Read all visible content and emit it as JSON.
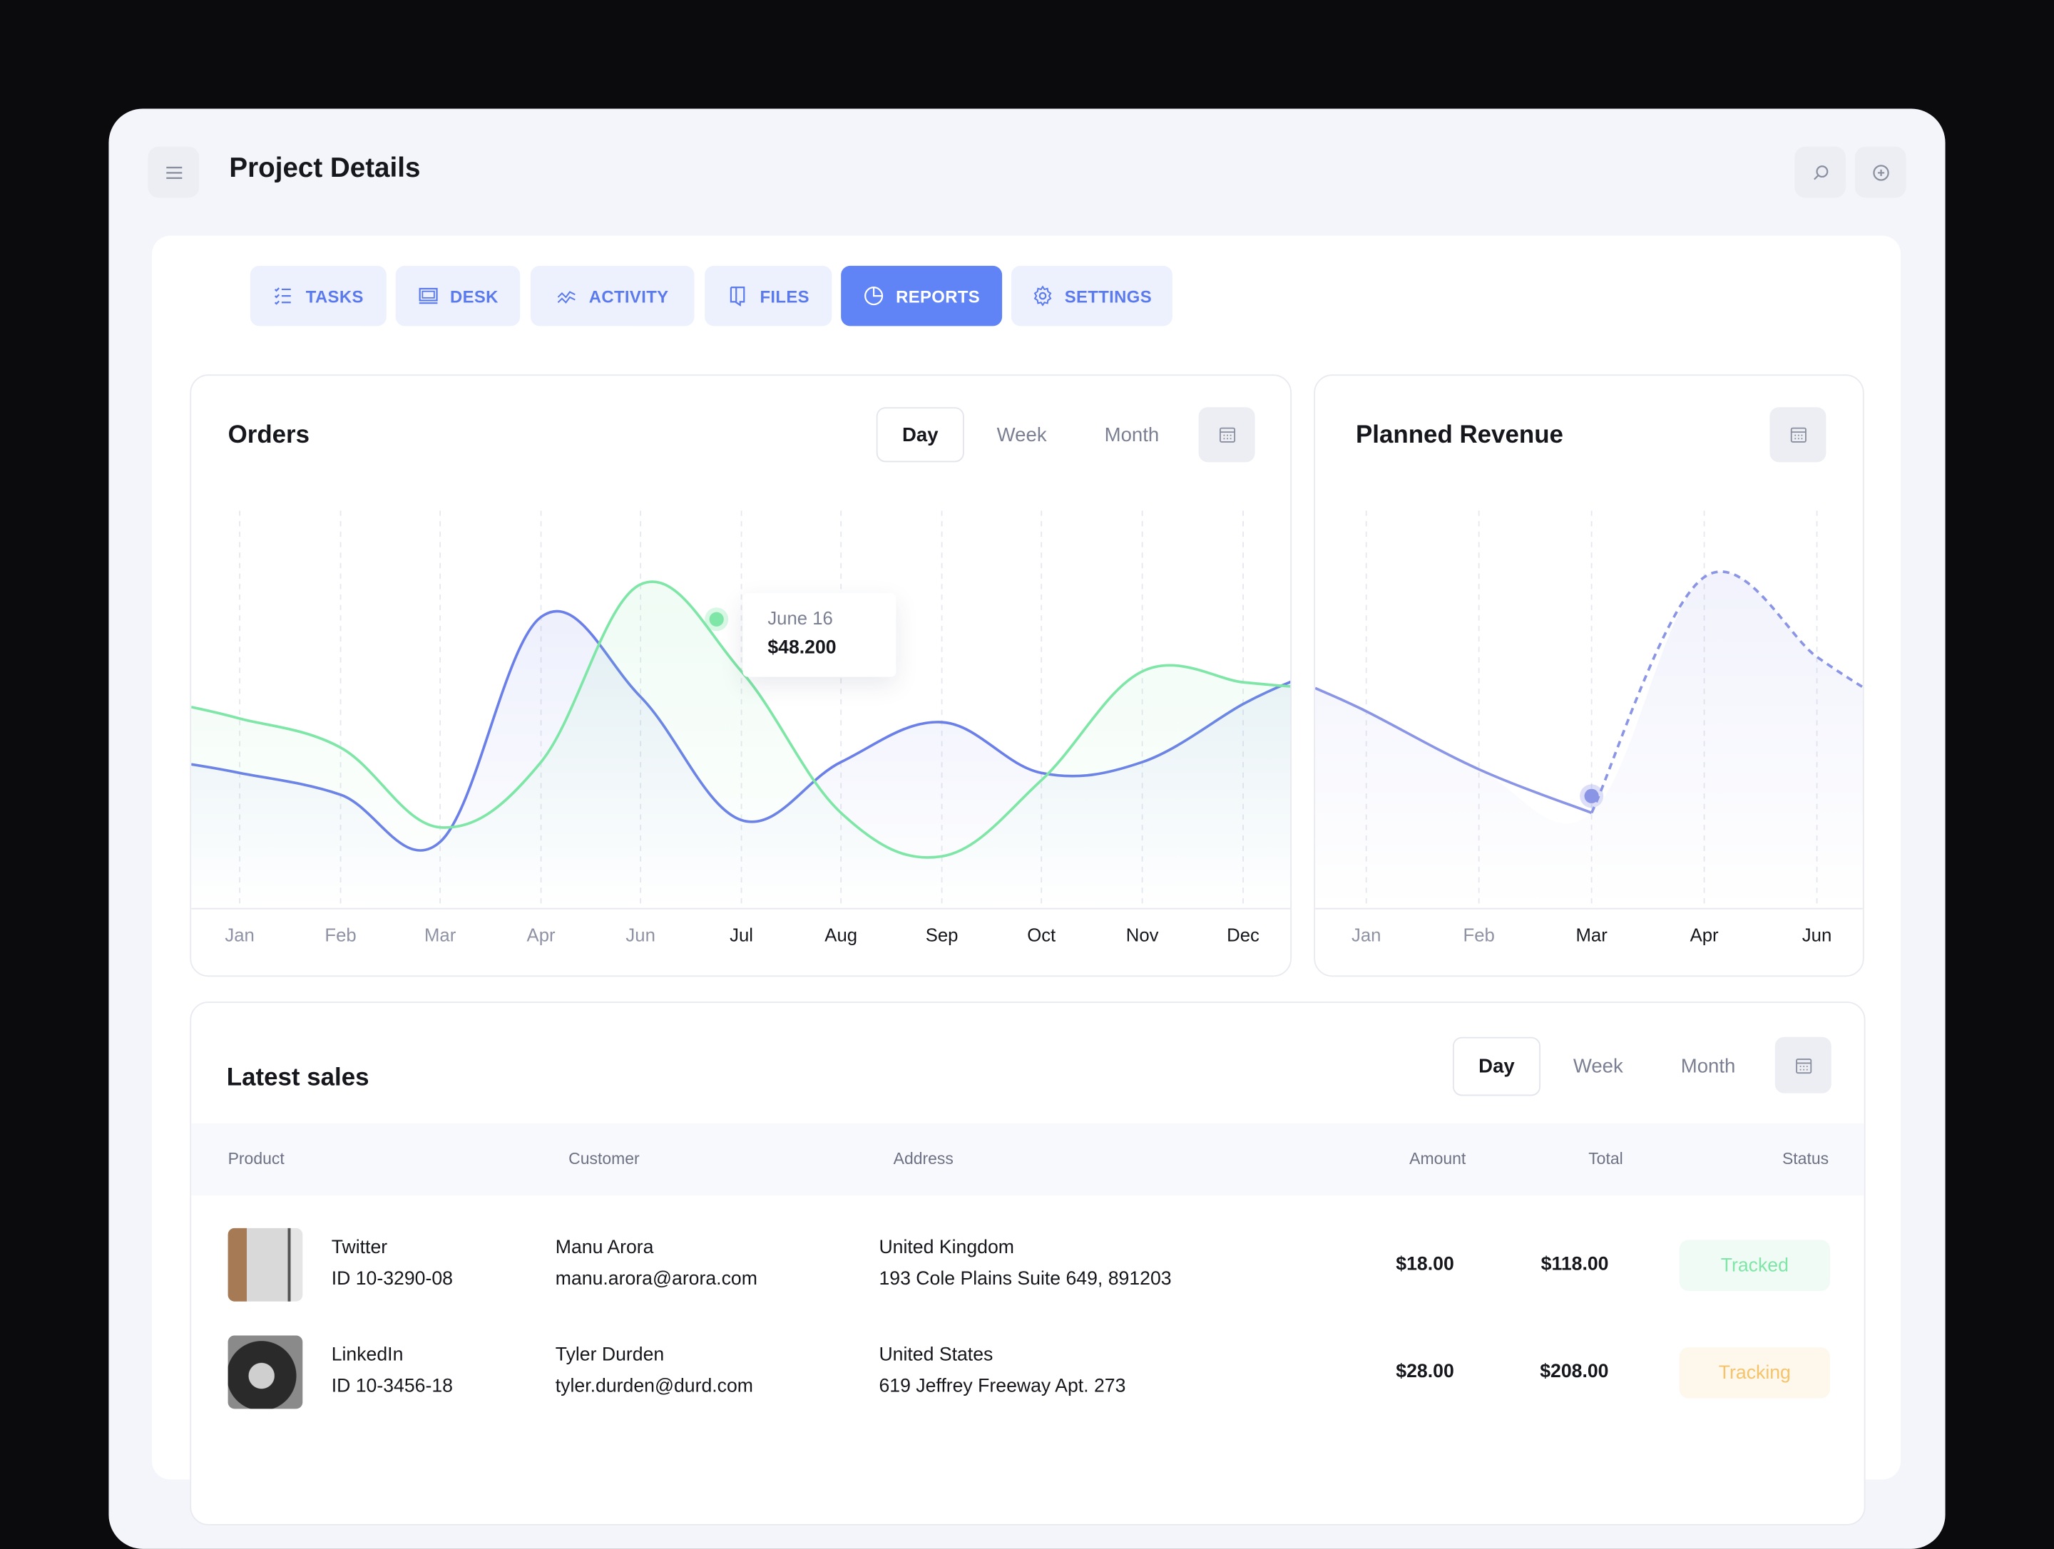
{
  "header": {
    "title": "Project Details",
    "menu_icon": "menu-icon",
    "search_icon": "search-icon",
    "add_icon": "plus-circle-icon"
  },
  "tabs": [
    {
      "label": "TASKS",
      "icon": "checklist-icon",
      "active": false
    },
    {
      "label": "DESK",
      "icon": "desk-icon",
      "active": false
    },
    {
      "label": "ACTIVITY",
      "icon": "activity-icon",
      "active": false
    },
    {
      "label": "FILES",
      "icon": "files-icon",
      "active": false
    },
    {
      "label": "REPORTS",
      "icon": "pie-chart-icon",
      "active": true
    },
    {
      "label": "SETTINGS",
      "icon": "gear-icon",
      "active": false
    }
  ],
  "orders": {
    "title": "Orders",
    "periods": [
      "Day",
      "Week",
      "Month"
    ],
    "selected_period": "Day",
    "tooltip": {
      "date": "June 16",
      "value": "$48.200"
    }
  },
  "revenue": {
    "title": "Planned Revenue"
  },
  "sales": {
    "title": "Latest sales",
    "periods": [
      "Day",
      "Week",
      "Month"
    ],
    "selected_period": "Day",
    "columns": [
      "Product",
      "Customer",
      "Address",
      "Amount",
      "Total",
      "Status"
    ],
    "rows": [
      {
        "product": "Twitter",
        "id": "ID 10-3290-08",
        "customer": "Manu Arora",
        "email": "manu.arora@arora.com",
        "country": "United Kingdom",
        "address": "193 Cole Plains Suite 649, 891203",
        "amount": "$18.00",
        "total": "$118.00",
        "status": "Tracked",
        "status_color": "#7ee6a6"
      },
      {
        "product": "LinkedIn",
        "id": "ID 10-3456-18",
        "customer": "Tyler Durden",
        "email": "tyler.durden@durd.com",
        "country": "United States",
        "address": "619 Jeffrey Freeway Apt. 273",
        "amount": "$28.00",
        "total": "$208.00",
        "status": "Tracking",
        "status_color": "#f5c46a"
      }
    ]
  },
  "colors": {
    "accent": "#6083f5",
    "blue_series": "#6b7fe8",
    "green_series": "#7ee6a6"
  },
  "chart_data": [
    {
      "type": "line",
      "title": "Orders",
      "categories": [
        "Jan",
        "Feb",
        "Mar",
        "Apr",
        "Jun",
        "Jul",
        "Aug",
        "Sep",
        "Oct",
        "Nov",
        "Dec"
      ],
      "highlight_category": "Jul",
      "series": [
        {
          "values": [
            32,
            26,
            13,
            75,
            53,
            19,
            35,
            46,
            32,
            35,
            51
          ]
        },
        {
          "values": [
            47,
            39,
            17,
            35,
            84,
            60,
            21,
            9,
            30,
            60,
            57
          ]
        }
      ],
      "ylim": [
        0,
        100
      ],
      "grid": "vertical dashed"
    },
    {
      "type": "line",
      "title": "Planned Revenue",
      "categories": [
        "Jan",
        "Feb",
        "Mar",
        "Apr",
        "Jun"
      ],
      "highlight_category": "Mar",
      "series": [
        {
          "values": [
            49,
            33,
            21,
            86,
            64
          ],
          "actual_until": "Mar"
        }
      ],
      "ylim": [
        0,
        100
      ],
      "grid": "vertical dashed"
    }
  ]
}
